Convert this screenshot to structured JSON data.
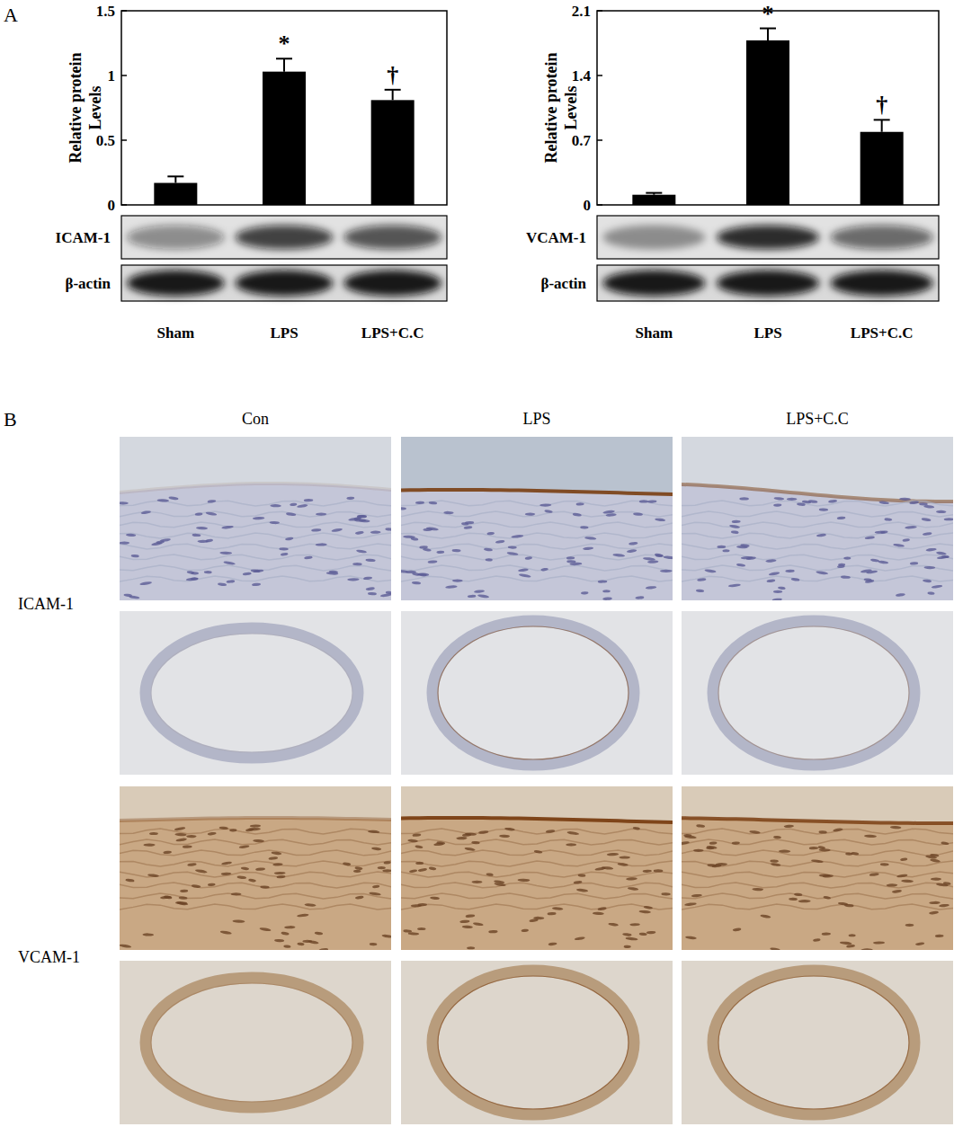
{
  "chart_data": [
    {
      "type": "bar",
      "y_label": [
        "Relative protein",
        "Levels"
      ],
      "categories": [
        "Sham",
        "LPS",
        "LPS+C.C"
      ],
      "values": [
        0.17,
        1.03,
        0.81
      ],
      "errors": [
        0.05,
        0.1,
        0.08
      ],
      "color": "#000000",
      "ylim": [
        0,
        1.5
      ],
      "yticks": [
        0,
        0.5,
        1,
        1.5
      ],
      "grid": false,
      "annotations": [
        {
          "category": "LPS",
          "text": "*"
        },
        {
          "category": "LPS+C.C",
          "text": "†"
        }
      ],
      "blots": [
        "ICAM-1",
        "β-actin"
      ]
    },
    {
      "type": "bar",
      "y_label": [
        "Relative protein",
        "Levels"
      ],
      "categories": [
        "Sham",
        "LPS",
        "LPS+C.C"
      ],
      "values": [
        0.11,
        1.78,
        0.79
      ],
      "errors": [
        0.02,
        0.13,
        0.13
      ],
      "color": "#000000",
      "ylim": [
        0,
        2.1
      ],
      "yticks": [
        0,
        0.7,
        1.4,
        2.1
      ],
      "grid": false,
      "annotations": [
        {
          "category": "LPS",
          "text": "*"
        },
        {
          "category": "LPS+C.C",
          "text": "†"
        }
      ],
      "blots": [
        "VCAM-1",
        "β-actin"
      ]
    }
  ],
  "figure": {
    "panel_labels": [
      "A",
      "B"
    ],
    "histology": {
      "columns": [
        "Con",
        "LPS",
        "LPS+C.C"
      ],
      "rows": [
        "ICAM-1",
        "VCAM-1"
      ]
    }
  }
}
